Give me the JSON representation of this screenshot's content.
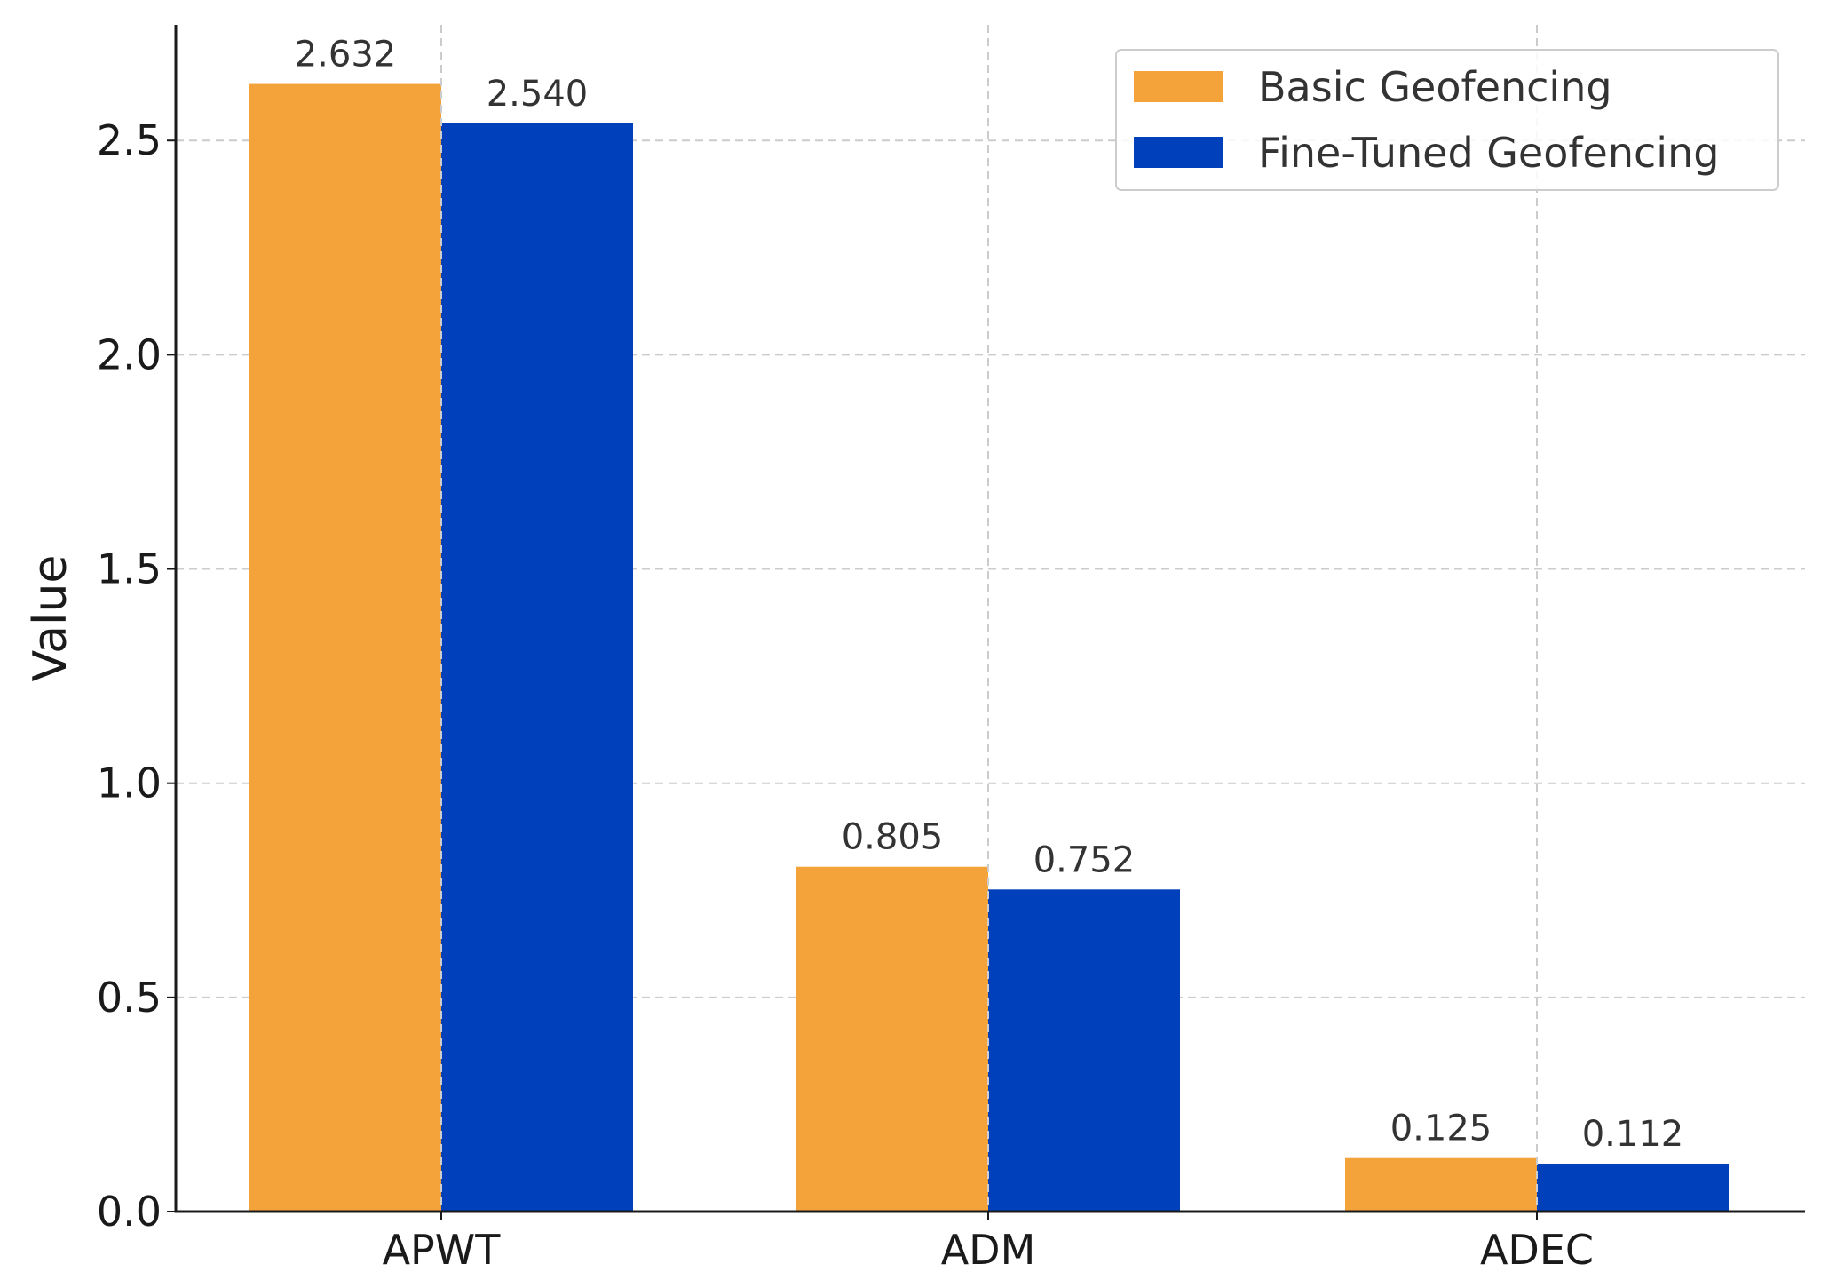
{
  "chart_data": {
    "type": "bar",
    "title": "",
    "xlabel": "",
    "ylabel": "Value",
    "categories": [
      "APWT",
      "ADM",
      "ADEC"
    ],
    "series": [
      {
        "name": "Basic Geofencing",
        "color": "#f4a33b",
        "values": [
          2.632,
          0.805,
          0.125
        ]
      },
      {
        "name": "Fine-Tuned Geofencing",
        "color": "#0040bb",
        "values": [
          2.54,
          0.752,
          0.112
        ]
      }
    ],
    "data_labels": [
      [
        "2.632",
        "0.805",
        "0.125"
      ],
      [
        "2.540",
        "0.752",
        "0.112"
      ]
    ],
    "ylim": [
      0,
      2.77
    ],
    "yticks": [
      0.0,
      0.5,
      1.0,
      1.5,
      2.0,
      2.5
    ],
    "ytick_labels": [
      "0.0",
      "0.5",
      "1.0",
      "1.5",
      "2.0",
      "2.5"
    ],
    "grid": true,
    "legend_position": "top-right"
  }
}
